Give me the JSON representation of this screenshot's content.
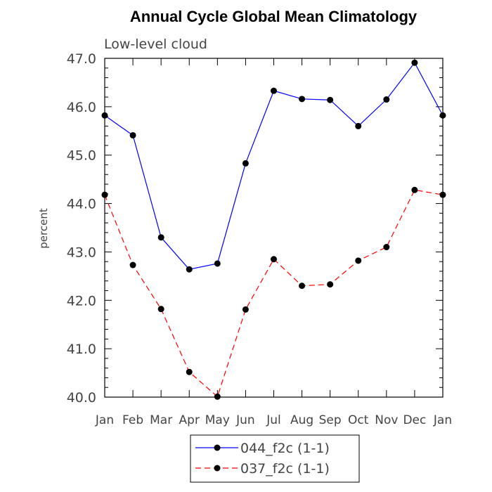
{
  "chart_data": {
    "type": "line",
    "title": "Annual Cycle Global Mean Climatology",
    "subtitle": "Low-level cloud",
    "xlabel": "",
    "ylabel": "percent",
    "categories": [
      "Jan",
      "Feb",
      "Mar",
      "Apr",
      "May",
      "Jun",
      "Jul",
      "Aug",
      "Sep",
      "Oct",
      "Nov",
      "Dec",
      "Jan"
    ],
    "ylim": [
      40.0,
      47.0
    ],
    "yticks": [
      "40.0",
      "41.0",
      "42.0",
      "43.0",
      "44.0",
      "45.0",
      "46.0",
      "47.0"
    ],
    "legend_position": "bottom-center",
    "series": [
      {
        "name": "044_f2c (1-1)",
        "color": "#0000ff",
        "style": "solid",
        "values": [
          45.82,
          45.41,
          43.3,
          42.64,
          42.76,
          44.83,
          46.33,
          46.16,
          46.14,
          45.6,
          46.15,
          46.91,
          45.82
        ]
      },
      {
        "name": "037_f2c (1-1)",
        "color": "#ff0000",
        "style": "dashed",
        "values": [
          44.18,
          42.73,
          41.82,
          40.52,
          40.01,
          41.81,
          42.85,
          42.3,
          42.33,
          42.82,
          43.1,
          44.28,
          44.18
        ]
      }
    ]
  }
}
